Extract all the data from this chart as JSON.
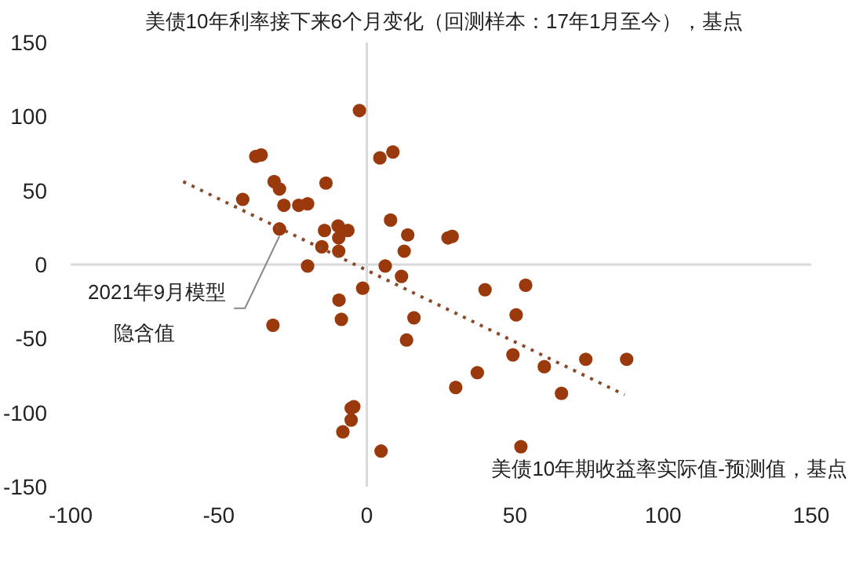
{
  "chart_data": {
    "type": "scatter",
    "title": "美债10年利率接下来6个月变化（回测样本：17年1月至今），基点",
    "xlabel": "美债10年期收益率实际值-预测值，基点",
    "annotations": [
      {
        "text": "2021年9月模型隐含值",
        "x": -29.5,
        "y": 24.5
      }
    ],
    "xlim": [
      -100,
      150
    ],
    "ylim": [
      -150,
      150
    ],
    "xticks": [
      -100,
      -50,
      0,
      50,
      100,
      150
    ],
    "yticks": [
      -150,
      -100,
      -50,
      0,
      50,
      100,
      150
    ],
    "series": [
      {
        "marker": "circle",
        "color": "#9a3a0c",
        "x": [
          -2.5,
          -37.5,
          -35.7,
          4.4,
          8.8,
          -31.3,
          -29.5,
          -13.8,
          -41.9,
          -28,
          -23,
          -20,
          8,
          13.8,
          -29.5,
          -14.3,
          -9.7,
          -6.4,
          -9.5,
          -15.2,
          -9.5,
          12.6,
          -20,
          6.2,
          11.7,
          -1.4,
          -9.4,
          -31.7,
          -8.6,
          15.9,
          27.4,
          28.8,
          39.9,
          53.6,
          50.4,
          13.4,
          49.3,
          59.9,
          73.9,
          87.7,
          37.3,
          30,
          65.7,
          -5.3,
          -4.4,
          -5.3,
          -8.1,
          4.8,
          52
        ],
        "values": [
          104,
          73,
          74,
          72,
          76,
          56,
          51,
          55,
          44,
          40,
          40,
          41,
          30,
          20,
          24,
          23,
          26,
          23,
          18,
          12,
          9,
          9,
          -1,
          -1,
          -8,
          -16,
          -24,
          -41,
          -37,
          -36,
          18,
          19,
          -17,
          -14,
          -34,
          -51,
          -61,
          -69,
          -64,
          -64,
          -73,
          -83,
          -87,
          -97,
          -96,
          -105,
          -113,
          -126,
          -123
        ]
      },
      {
        "type": "line",
        "marker": "none",
        "line_style": "dotted",
        "color": "#8a4a2a",
        "x": [
          -62,
          87
        ],
        "values": [
          56,
          -88
        ]
      }
    ]
  }
}
